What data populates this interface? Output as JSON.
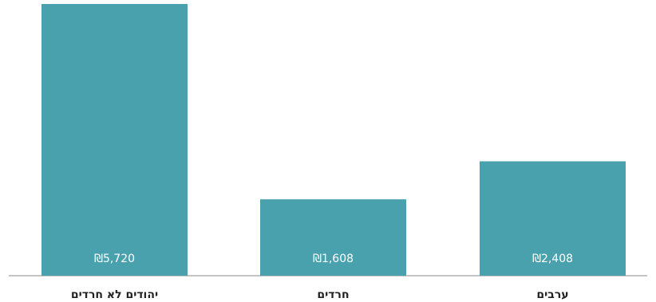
{
  "chart_data": {
    "type": "bar",
    "categories": [
      "יהודים לא חרדים",
      "חרדים",
      "ערבים"
    ],
    "values": [
      5720,
      1608,
      2408
    ],
    "value_labels": [
      "₪5,720",
      "₪1,608",
      "₪2,408"
    ],
    "title": "",
    "xlabel": "",
    "ylabel": "",
    "ylim": [
      0,
      5720
    ],
    "grid": false,
    "legend": "none",
    "bar_color": "#4aa1ae",
    "axis_color": "#8a8a8a"
  }
}
